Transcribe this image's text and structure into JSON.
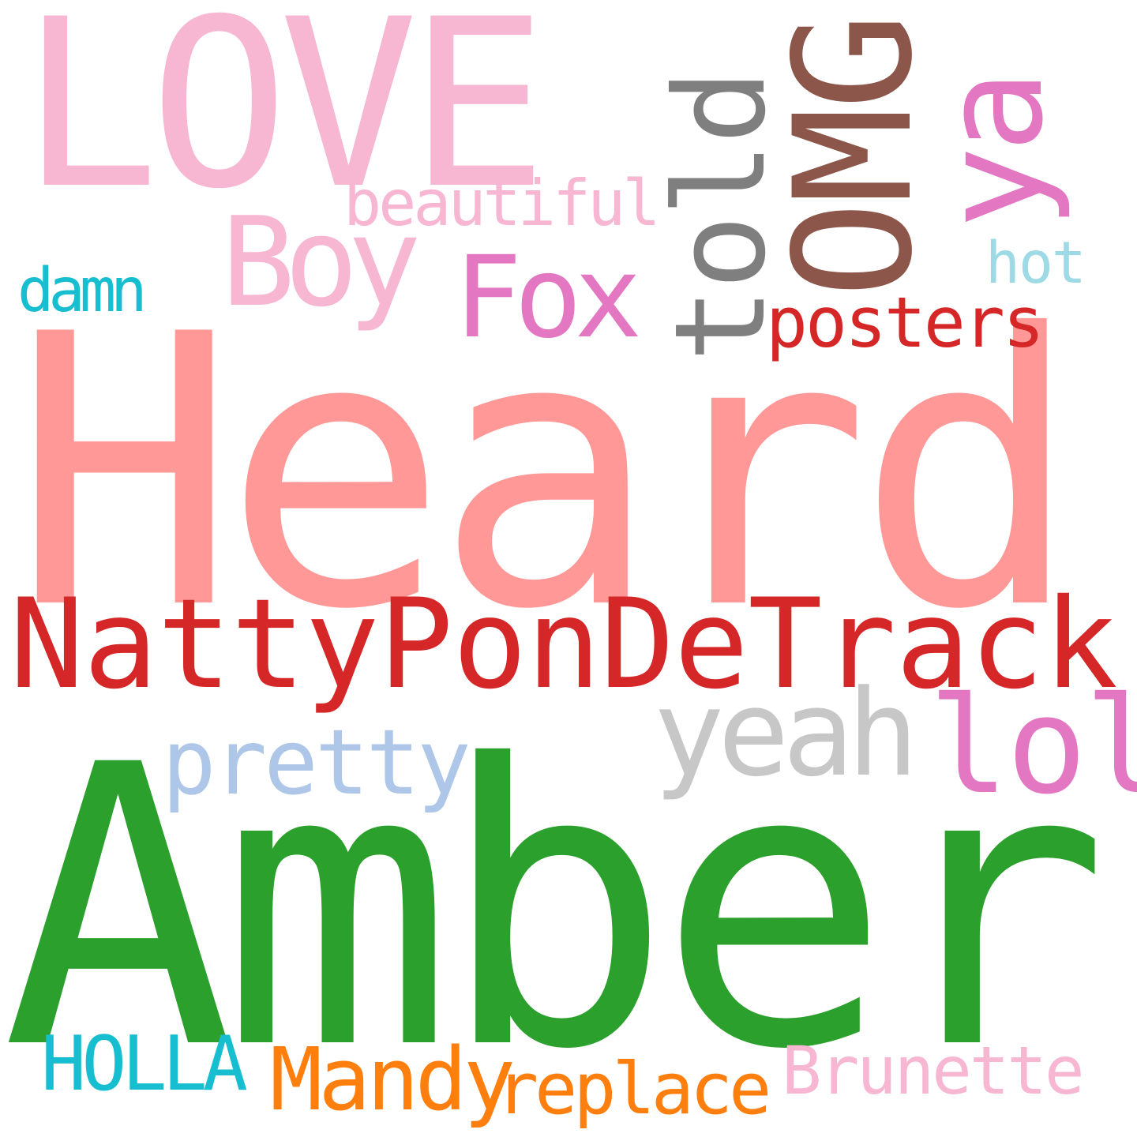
{
  "words": {
    "heard": {
      "text": "Heard",
      "color": "#ff9896"
    },
    "amber": {
      "text": "Amber",
      "color": "#2ca02c"
    },
    "natty": {
      "text": "NattyPonDeTrack",
      "color": "#d62728"
    },
    "love": {
      "text": "LOVE",
      "color": "#f7b6d2"
    },
    "omg": {
      "text": "OMG",
      "color": "#8c564b"
    },
    "told": {
      "text": "told",
      "color": "#7f7f7f"
    },
    "ya": {
      "text": "ya",
      "color": "#e377c2"
    },
    "boy": {
      "text": "Boy",
      "color": "#f7b6d2"
    },
    "fox": {
      "text": "Fox",
      "color": "#e377c2"
    },
    "beautiful": {
      "text": "beautiful",
      "color": "#f7b6d2"
    },
    "posters": {
      "text": "posters",
      "color": "#d62728"
    },
    "hot": {
      "text": "hot",
      "color": "#9edae5"
    },
    "damn": {
      "text": "damn",
      "color": "#17becf"
    },
    "yeah": {
      "text": "yeah",
      "color": "#c7c7c7"
    },
    "lol": {
      "text": "lol",
      "color": "#e377c2"
    },
    "pretty": {
      "text": "pretty",
      "color": "#aec7e8"
    },
    "holla": {
      "text": "HOLLA",
      "color": "#17becf"
    },
    "mandy": {
      "text": "Mandy",
      "color": "#ff7f0e"
    },
    "replace": {
      "text": "replace",
      "color": "#ff7f0e"
    },
    "brunette": {
      "text": "Brunette",
      "color": "#f7b6d2"
    }
  }
}
